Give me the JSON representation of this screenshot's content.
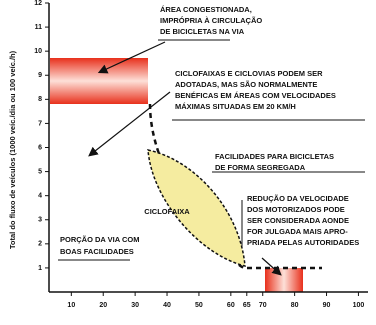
{
  "chart_data": {
    "type": "diagram",
    "y_label": "Total do fluxo de veículos (1000 veíc./dia ou 100 veíc./h)",
    "xlim": [
      3,
      103
    ],
    "xticks": [
      10,
      20,
      30,
      40,
      50,
      60,
      65,
      70,
      80,
      90,
      100
    ],
    "ylim": [
      0,
      12
    ],
    "yticks": [
      1,
      2,
      3,
      4,
      5,
      6,
      7,
      8,
      9,
      10,
      11,
      12
    ],
    "annotations": [
      [
        "ÁREA CONGESTIONADA,",
        "IMPRÓPRIA À CIRCULAÇÃO",
        "DE BICICLETAS NA VIA"
      ],
      [
        "CICLOFAIXAS E CICLOVIAS PODEM SER",
        "ADOTADAS, MAS SÃO NORMALMENTE",
        "BENÉFICAS EM ÁREAS COM VELOCIDADES",
        "MÁXIMAS SITUADAS EM 20 KM/H"
      ],
      [
        "FACILIDADES PARA BICICLETAS",
        "DE FORMA SEGREGADA"
      ],
      [
        "CICLOFAIXA"
      ],
      [
        "REDUÇÃO DA VELOCIDADE",
        "DOS MOTORIZADOS PODE",
        "SER CONSIDERADA AONDE",
        "FOR JULGADA MAIS APRO-",
        "PRIADA PELAS AUTORIDADES"
      ],
      [
        "PORÇÃO DA VIA COM",
        "BOAS FACILIDADES"
      ]
    ]
  }
}
